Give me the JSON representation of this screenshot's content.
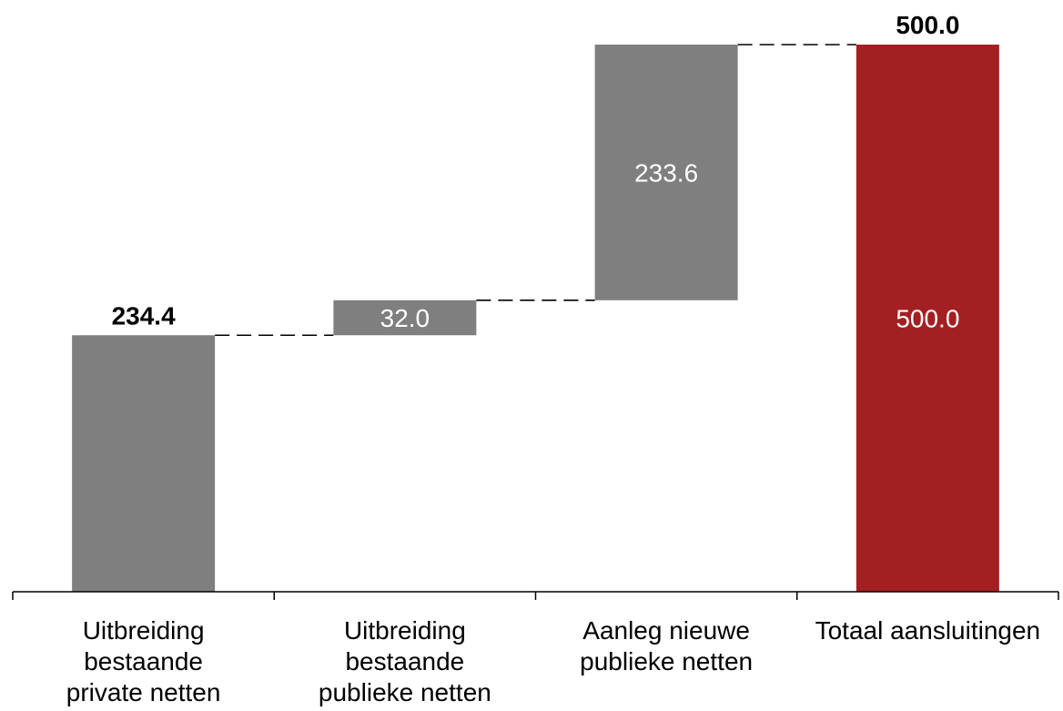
{
  "chart_data": {
    "type": "bar",
    "variant": "waterfall",
    "categories": [
      [
        "Uitbreiding",
        "bestaande",
        "private netten"
      ],
      [
        "Uitbreiding",
        "bestaande",
        "publieke netten"
      ],
      [
        "Aanleg nieuwe",
        "publieke netten"
      ],
      [
        "Totaal aansluitingen"
      ]
    ],
    "steps": [
      {
        "kind": "increment",
        "value": 234.4,
        "label": "234.4",
        "label_position": "above"
      },
      {
        "kind": "increment",
        "value": 32.0,
        "label": "32.0",
        "label_position": "inside"
      },
      {
        "kind": "increment",
        "value": 233.6,
        "label": "233.6",
        "label_position": "inside"
      },
      {
        "kind": "total",
        "value": 500.0,
        "label_inside": "500.0",
        "label_above": "500.0"
      }
    ],
    "ylim": [
      0,
      500
    ],
    "grid": false,
    "connectors": "dashed",
    "colors": {
      "increment": "#7f7f7f",
      "total": "#a32022",
      "axis": "#000000"
    }
  }
}
